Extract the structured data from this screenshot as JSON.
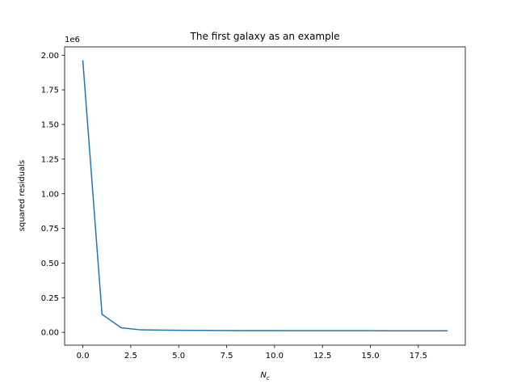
{
  "chart_data": {
    "type": "line",
    "title": "The first galaxy as an example",
    "xlabel": "N",
    "xlabel_subscript": "c",
    "ylabel": "squared residuals",
    "y_offset_label": "1e6",
    "xlim": [
      -0.95,
      19.95
    ],
    "ylim": [
      -0.0925,
      2.06
    ],
    "grid": false,
    "x_ticks": [
      0,
      2.5,
      5,
      7.5,
      10,
      12.5,
      15,
      17.5
    ],
    "x_tick_labels": [
      "0.0",
      "2.5",
      "5.0",
      "7.5",
      "10.0",
      "12.5",
      "15.0",
      "17.5"
    ],
    "y_ticks": [
      0,
      0.25,
      0.5,
      0.75,
      1.0,
      1.25,
      1.5,
      1.75,
      2.0
    ],
    "y_tick_labels": [
      "0.00",
      "0.25",
      "0.50",
      "0.75",
      "1.00",
      "1.25",
      "1.50",
      "1.75",
      "2.00"
    ],
    "series": [
      {
        "color": "#1f77b4",
        "x": [
          0,
          1,
          2,
          3,
          4,
          5,
          6,
          7,
          8,
          9,
          10,
          11,
          12,
          13,
          14,
          15,
          16,
          17,
          18,
          19
        ],
        "y": [
          1.96,
          0.13,
          0.033,
          0.018,
          0.016,
          0.015,
          0.014,
          0.013,
          0.0128,
          0.0125,
          0.0122,
          0.012,
          0.0118,
          0.0117,
          0.0116,
          0.0115,
          0.0114,
          0.0113,
          0.0112,
          0.0111
        ]
      }
    ]
  }
}
